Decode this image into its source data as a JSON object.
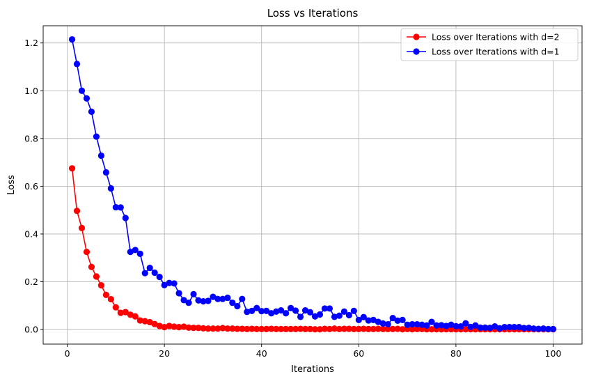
{
  "chart_data": {
    "type": "line",
    "title": "Loss vs Iterations",
    "xlabel": "Iterations",
    "ylabel": "Loss",
    "xlim": [
      -4.95,
      105.95
    ],
    "ylim": [
      -0.061,
      1.272
    ],
    "x_ticks": [
      0,
      20,
      40,
      60,
      80,
      100
    ],
    "x_tick_labels": [
      "0",
      "20",
      "40",
      "60",
      "80",
      "100"
    ],
    "y_ticks": [
      0.0,
      0.2,
      0.4,
      0.6,
      0.8,
      1.0,
      1.2
    ],
    "y_tick_labels": [
      "0.0",
      "0.2",
      "0.4",
      "0.6",
      "0.8",
      "1.0",
      "1.2"
    ],
    "grid": true,
    "legend_position": "top-right",
    "x": [
      1,
      2,
      3,
      4,
      5,
      6,
      7,
      8,
      9,
      10,
      11,
      12,
      13,
      14,
      15,
      16,
      17,
      18,
      19,
      20,
      21,
      22,
      23,
      24,
      25,
      26,
      27,
      28,
      29,
      30,
      31,
      32,
      33,
      34,
      35,
      36,
      37,
      38,
      39,
      40,
      41,
      42,
      43,
      44,
      45,
      46,
      47,
      48,
      49,
      50,
      51,
      52,
      53,
      54,
      55,
      56,
      57,
      58,
      59,
      60,
      61,
      62,
      63,
      64,
      65,
      66,
      67,
      68,
      69,
      70,
      71,
      72,
      73,
      74,
      75,
      76,
      77,
      78,
      79,
      80,
      81,
      82,
      83,
      84,
      85,
      86,
      87,
      88,
      89,
      90,
      91,
      92,
      93,
      94,
      95,
      96,
      97,
      98,
      99,
      100
    ],
    "series": [
      {
        "name": "Loss over Iterations with d=2",
        "color": "#ff0000",
        "values": [
          0.675,
          0.497,
          0.425,
          0.325,
          0.262,
          0.222,
          0.185,
          0.145,
          0.127,
          0.093,
          0.07,
          0.073,
          0.062,
          0.055,
          0.038,
          0.035,
          0.031,
          0.023,
          0.015,
          0.01,
          0.015,
          0.012,
          0.01,
          0.012,
          0.008,
          0.007,
          0.007,
          0.005,
          0.004,
          0.004,
          0.004,
          0.006,
          0.004,
          0.004,
          0.003,
          0.003,
          0.002,
          0.003,
          0.002,
          0.002,
          0.002,
          0.003,
          0.002,
          0.002,
          0.002,
          0.002,
          0.002,
          0.003,
          0.002,
          0.002,
          0.001,
          0.001,
          0.003,
          0.002,
          0.004,
          0.002,
          0.003,
          0.003,
          0.002,
          0.002,
          0.003,
          0.002,
          0.002,
          0.003,
          0.002,
          0.002,
          0.002,
          0.003,
          0.001,
          0.002,
          0.001,
          0.002,
          0.002,
          0.001,
          0.001,
          0.001,
          0.001,
          0.001,
          0.001,
          0.001,
          0.001,
          0.001,
          0.001,
          0.001,
          0.001,
          0.001,
          0.001,
          0.001,
          0.001,
          0.001,
          0.001,
          0.001,
          0.001,
          0.001,
          0.001,
          0.001,
          0.001,
          0.001,
          0.001,
          0.001
        ]
      },
      {
        "name": "Loss over Iterations with d=1",
        "color": "#0000ff",
        "values": [
          1.215,
          1.112,
          1.0,
          0.968,
          0.912,
          0.808,
          0.728,
          0.658,
          0.591,
          0.512,
          0.511,
          0.467,
          0.325,
          0.333,
          0.317,
          0.236,
          0.258,
          0.238,
          0.22,
          0.186,
          0.195,
          0.193,
          0.152,
          0.123,
          0.112,
          0.148,
          0.122,
          0.118,
          0.12,
          0.137,
          0.128,
          0.128,
          0.133,
          0.112,
          0.098,
          0.128,
          0.074,
          0.078,
          0.09,
          0.077,
          0.078,
          0.068,
          0.075,
          0.08,
          0.068,
          0.09,
          0.079,
          0.053,
          0.08,
          0.072,
          0.055,
          0.063,
          0.088,
          0.088,
          0.053,
          0.058,
          0.075,
          0.06,
          0.078,
          0.04,
          0.052,
          0.038,
          0.04,
          0.032,
          0.025,
          0.022,
          0.048,
          0.037,
          0.04,
          0.02,
          0.022,
          0.022,
          0.02,
          0.017,
          0.032,
          0.017,
          0.018,
          0.015,
          0.02,
          0.014,
          0.013,
          0.026,
          0.011,
          0.017,
          0.008,
          0.008,
          0.007,
          0.013,
          0.005,
          0.01,
          0.01,
          0.01,
          0.01,
          0.006,
          0.007,
          0.004,
          0.003,
          0.004,
          0.002,
          0.002
        ]
      }
    ]
  }
}
